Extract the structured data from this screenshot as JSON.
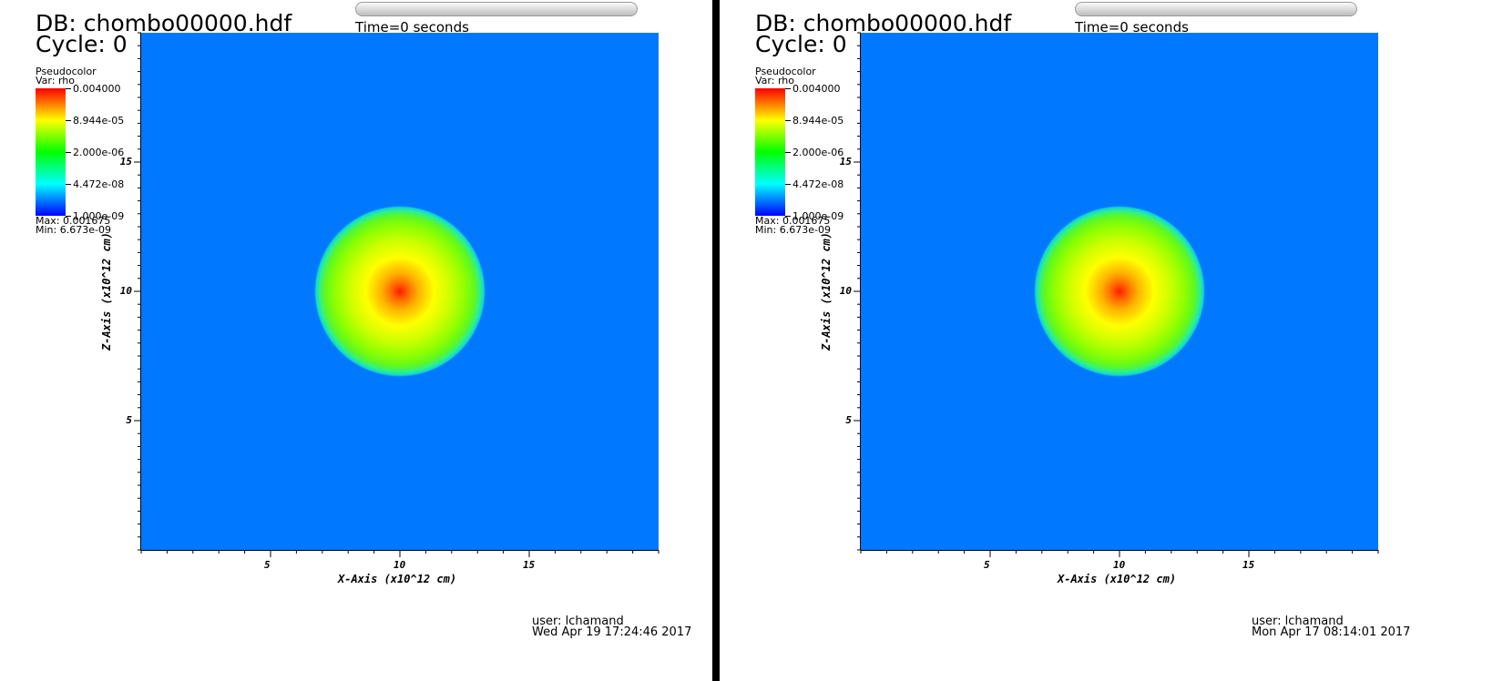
{
  "chart_data": [
    {
      "type": "heatmap",
      "db_title": "DB: chombo00000.hdf",
      "cycle_label": "Cycle: 0",
      "time_label": "Time:0",
      "slider_label": "Time=0 seconds",
      "legend": {
        "plot_type": "Pseudocolor",
        "variable": "Var: rho",
        "max_label": "Max: 0.001675",
        "min_label": "Min: 6.673e-09",
        "ticks": [
          "0.004000",
          "8.944e-05",
          "2.000e-06",
          "4.472e-08",
          "1.000e-09"
        ],
        "colors": [
          "#ff0000",
          "#ffff00",
          "#00ff00",
          "#00ffff",
          "#0000ff"
        ]
      },
      "xlabel": "X-Axis (x10^12 cm)",
      "ylabel": "Z-Axis (x10^12 cm)",
      "xlim": [
        0,
        20
      ],
      "ylim": [
        0,
        20
      ],
      "x_ticks": [
        5,
        10,
        15
      ],
      "y_ticks": [
        5,
        10,
        15
      ],
      "feature": {
        "shape": "circle",
        "center": [
          10,
          10
        ],
        "radius": 3.3
      },
      "background_color": "#0078ff",
      "footer_user": "user: lchamand",
      "footer_date": "Wed Apr 19 17:24:46 2017"
    },
    {
      "type": "heatmap",
      "db_title": "DB: chombo00000.hdf",
      "cycle_label": "Cycle: 0",
      "time_label": "Time:0",
      "slider_label": "Time=0 seconds",
      "legend": {
        "plot_type": "Pseudocolor",
        "variable": "Var: rho",
        "max_label": "Max: 0.001675",
        "min_label": "Min: 6.673e-09",
        "ticks": [
          "0.004000",
          "8.944e-05",
          "2.000e-06",
          "4.472e-08",
          "1.000e-09"
        ],
        "colors": [
          "#ff0000",
          "#ffff00",
          "#00ff00",
          "#00ffff",
          "#0000ff"
        ]
      },
      "xlabel": "X-Axis (x10^12 cm)",
      "ylabel": "Z-Axis (x10^12 cm)",
      "xlim": [
        0,
        20
      ],
      "ylim": [
        0,
        20
      ],
      "x_ticks": [
        5,
        10,
        15
      ],
      "y_ticks": [
        5,
        10,
        15
      ],
      "feature": {
        "shape": "circle",
        "center": [
          10,
          10
        ],
        "radius": 3.3
      },
      "background_color": "#0078ff",
      "footer_user": "user: lchamand",
      "footer_date": "Mon Apr 17 08:14:01 2017"
    }
  ]
}
